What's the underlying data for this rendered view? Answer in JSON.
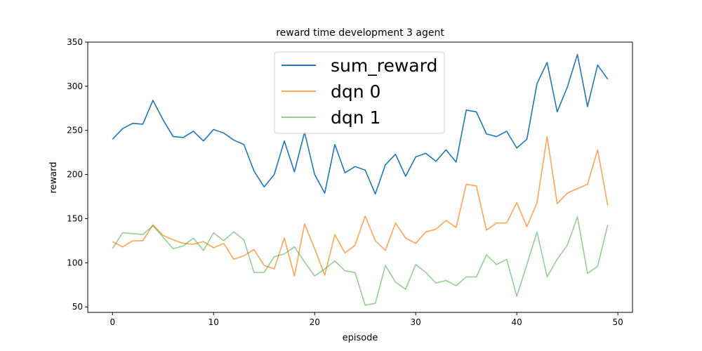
{
  "chart_data": {
    "type": "line",
    "title": "reward time development 3 agent",
    "xlabel": "episode",
    "ylabel": "reward",
    "xlim": [
      -2.45,
      51.45
    ],
    "ylim": [
      43.8,
      350
    ],
    "xticks": [
      0,
      10,
      20,
      30,
      40,
      50
    ],
    "yticks": [
      50,
      100,
      150,
      200,
      250,
      300,
      350
    ],
    "grid": false,
    "legend_position": "top-center",
    "x": [
      0,
      1,
      2,
      3,
      4,
      5,
      6,
      7,
      8,
      9,
      10,
      11,
      12,
      13,
      14,
      15,
      16,
      17,
      18,
      19,
      20,
      21,
      22,
      23,
      24,
      25,
      26,
      27,
      28,
      29,
      30,
      31,
      32,
      33,
      34,
      35,
      36,
      37,
      38,
      39,
      40,
      41,
      42,
      43,
      44,
      45,
      46,
      47,
      48,
      49
    ],
    "series": [
      {
        "name": "sum_reward",
        "color": "#1f77b4",
        "opacity": 1.0,
        "values": [
          240,
          252,
          258,
          257,
          284,
          262,
          243,
          242,
          249,
          238,
          251,
          247,
          239,
          234,
          204,
          186,
          200,
          238,
          203,
          248,
          200,
          179,
          234,
          202,
          209,
          205,
          178,
          211,
          223,
          198,
          220,
          224,
          215,
          228,
          214,
          273,
          271,
          246,
          243,
          249,
          230,
          240,
          303,
          327,
          271,
          299,
          336,
          277,
          324,
          308
        ]
      },
      {
        "name": "dqn 0",
        "color": "#ff7f0e",
        "opacity": 0.7,
        "values": [
          124,
          118,
          125,
          125,
          143,
          131,
          126,
          122,
          121,
          124,
          117,
          122,
          104,
          108,
          115,
          97,
          93,
          128,
          85,
          144,
          116,
          86,
          132,
          111,
          120,
          153,
          125,
          114,
          145,
          128,
          122,
          135,
          138,
          148,
          140,
          189,
          187,
          137,
          145,
          145,
          168,
          141,
          168,
          243,
          167,
          179,
          184,
          189,
          228,
          165
        ]
      },
      {
        "name": "dqn 1",
        "color": "#2ca02c",
        "opacity": 0.5,
        "values": [
          116,
          134,
          133,
          132,
          142,
          129,
          116,
          119,
          128,
          114,
          134,
          125,
          135,
          126,
          89,
          89,
          107,
          110,
          118,
          101,
          85,
          93,
          102,
          91,
          89,
          52,
          54,
          97,
          78,
          70,
          98,
          89,
          77,
          80,
          74,
          84,
          84,
          109,
          98,
          104,
          62,
          98,
          135,
          84,
          104,
          120,
          152,
          88,
          96,
          143
        ]
      }
    ]
  }
}
